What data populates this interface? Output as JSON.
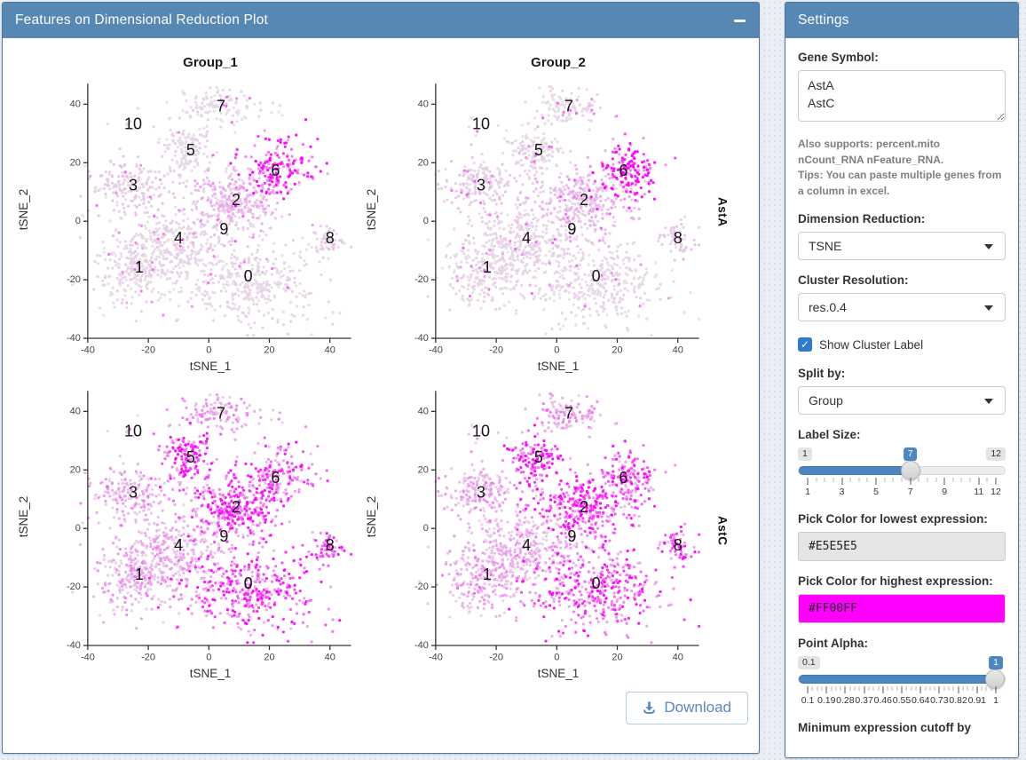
{
  "main_panel": {
    "title": "Features on Dimensional Reduction Plot",
    "collapse_icon": "minus",
    "download_label": "Download"
  },
  "settings": {
    "title": "Settings",
    "gene_symbol_label": "Gene Symbol:",
    "gene_symbol_value": "AstA\nAstC",
    "help_line1": "Also supports: percent.mito nCount_RNA nFeature_RNA.",
    "help_line2": "Tips: You can paste multiple genes from a column in excel.",
    "dimension_reduction_label": "Dimension Reduction:",
    "dimension_reduction_value": "TSNE",
    "cluster_resolution_label": "Cluster Resolution:",
    "cluster_resolution_value": "res.0.4",
    "show_cluster_label_text": "Show Cluster Label",
    "show_cluster_label_checked": true,
    "split_by_label": "Split by:",
    "split_by_value": "Group",
    "label_size": {
      "label": "Label Size:",
      "min": 1,
      "max": 12,
      "value": 7,
      "tick_labels": [
        "1",
        "3",
        "5",
        "7",
        "9",
        "11",
        "12"
      ],
      "tick_values": [
        1,
        3,
        5,
        7,
        9,
        11,
        12
      ],
      "minor_step": 0.5
    },
    "low_color": {
      "label": "Pick Color for lowest expression:",
      "value": "#E5E5E5"
    },
    "high_color": {
      "label": "Pick Color for highest expression:",
      "value": "#FF00FF"
    },
    "point_alpha": {
      "label": "Point Alpha:",
      "min": 0.1,
      "max": 1,
      "value": 1,
      "tick_labels": [
        "0.1",
        "0.19",
        "0.28",
        "0.37",
        "0.46",
        "0.55",
        "0.64",
        "0.73",
        "0.82",
        "0.91",
        "1"
      ],
      "tick_values": [
        0.1,
        0.19,
        0.28,
        0.37,
        0.46,
        0.55,
        0.64,
        0.73,
        0.82,
        0.91,
        1
      ],
      "minor_step": 0.0225
    },
    "min_cutoff_label": "Minimum expression cutoff by"
  },
  "chart_data": {
    "type": "scatter",
    "description": "Feature plots of gene expression on tSNE embedding, faceted by Group (columns) and gene (rows). Color encodes expression from low (#E5E5E5) to high (#FF00FF).",
    "facets": {
      "cols": [
        "Group_1",
        "Group_2"
      ],
      "rows": [
        "AstA",
        "AstC"
      ]
    },
    "xlabel": "tSNE_1",
    "ylabel": "tSNE_2",
    "x_ticks": [
      -40,
      -20,
      0,
      20,
      40
    ],
    "y_ticks": [
      -40,
      -20,
      0,
      20,
      40
    ],
    "xlim": [
      -47,
      48
    ],
    "ylim": [
      -40,
      48
    ],
    "point_color": {
      "low": "#E5E5E5",
      "high": "#FF00FF"
    },
    "cluster_label_color": "#141414",
    "clusters": [
      {
        "id": 0,
        "cx": 13,
        "cy": -21,
        "sx": 11,
        "sy": 7.5,
        "n": 380,
        "lx": 13,
        "ly": -19
      },
      {
        "id": 1,
        "cx": -23,
        "cy": -16,
        "sx": 7,
        "sy": 6.5,
        "n": 270,
        "lx": -23,
        "ly": -16
      },
      {
        "id": 2,
        "cx": 8,
        "cy": 7,
        "sx": 8,
        "sy": 5.5,
        "n": 310,
        "lx": 9,
        "ly": 7
      },
      {
        "id": 3,
        "cx": -26,
        "cy": 12,
        "sx": 6.5,
        "sy": 4.5,
        "n": 180,
        "lx": -25,
        "ly": 12
      },
      {
        "id": 4,
        "cx": -11,
        "cy": -7,
        "sx": 7.5,
        "sy": 5.5,
        "n": 250,
        "lx": -10,
        "ly": -6
      },
      {
        "id": 5,
        "cx": -7,
        "cy": 24,
        "sx": 4.5,
        "sy": 4.5,
        "n": 140,
        "lx": -6,
        "ly": 24
      },
      {
        "id": 6,
        "cx": 23,
        "cy": 18,
        "sx": 5.5,
        "sy": 5,
        "n": 170,
        "lx": 22,
        "ly": 17
      },
      {
        "id": 7,
        "cx": 4,
        "cy": 39,
        "sx": 6,
        "sy": 3.2,
        "n": 120,
        "lx": 4,
        "ly": 39
      },
      {
        "id": 8,
        "cx": 40,
        "cy": -6,
        "sx": 2.8,
        "sy": 2.6,
        "n": 55,
        "lx": 40,
        "ly": -6
      },
      {
        "id": 9,
        "cx": 5,
        "cy": -3,
        "sx": 5,
        "sy": 4,
        "n": 26,
        "lx": 5,
        "ly": -3
      },
      {
        "id": 10,
        "cx": -25,
        "cy": 33,
        "sx": 4,
        "sy": 2.5,
        "n": 8,
        "lx": -25,
        "ly": 33
      }
    ],
    "expression": {
      "AstA": [
        0.05,
        0.05,
        0.16,
        0.09,
        0.06,
        0.05,
        0.82,
        0.04,
        0.09,
        0.06,
        0.03
      ],
      "AstC": [
        0.58,
        0.22,
        0.62,
        0.22,
        0.18,
        0.68,
        0.52,
        0.26,
        0.62,
        0.28,
        0.1
      ]
    }
  }
}
